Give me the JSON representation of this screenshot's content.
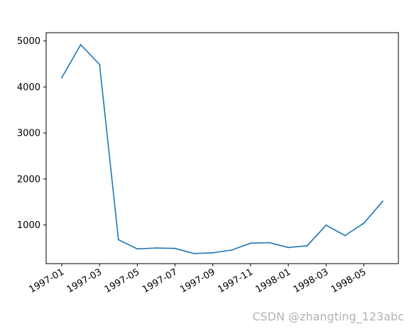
{
  "chart_data": {
    "type": "line",
    "title": "",
    "xlabel": "",
    "ylabel": "",
    "x": [
      "1997-01",
      "1997-02",
      "1997-03",
      "1997-04",
      "1997-05",
      "1997-06",
      "1997-07",
      "1997-08",
      "1997-09",
      "1997-10",
      "1997-11",
      "1997-12",
      "1998-01",
      "1998-02",
      "1998-03",
      "1998-04",
      "1998-05",
      "1998-06"
    ],
    "series": [
      {
        "values": [
          4200,
          4920,
          4490,
          680,
          480,
          500,
          490,
          380,
          395,
          455,
          605,
          615,
          510,
          550,
          995,
          770,
          1040,
          1515
        ]
      }
    ],
    "x_tick_labels": [
      "1997-01",
      "1997-03",
      "1997-05",
      "1997-07",
      "1997-09",
      "1997-11",
      "1998-01",
      "1998-03",
      "1998-05"
    ],
    "y_ticks": [
      1000,
      2000,
      3000,
      4000,
      5000
    ],
    "ylim": [
      160,
      5180
    ],
    "line_color": "#1f77b4",
    "grid": false
  },
  "watermark": "CSDN @zhangting_123abc"
}
